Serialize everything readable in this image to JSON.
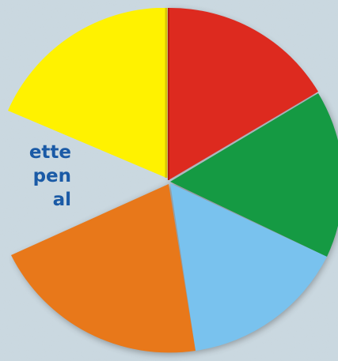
{
  "side_text": {
    "line1": "ette",
    "line2": "pen",
    "line3": "al"
  },
  "wheel": {
    "segments": [
      {
        "name": "red",
        "color": "#dd2a1f"
      },
      {
        "name": "green",
        "color": "#159a43"
      },
      {
        "name": "blue",
        "color": "#79c2ee"
      },
      {
        "name": "orange",
        "color": "#e8781a"
      },
      {
        "name": "yellow",
        "color": "#fff200"
      }
    ],
    "background_color": "#c9d7df"
  }
}
